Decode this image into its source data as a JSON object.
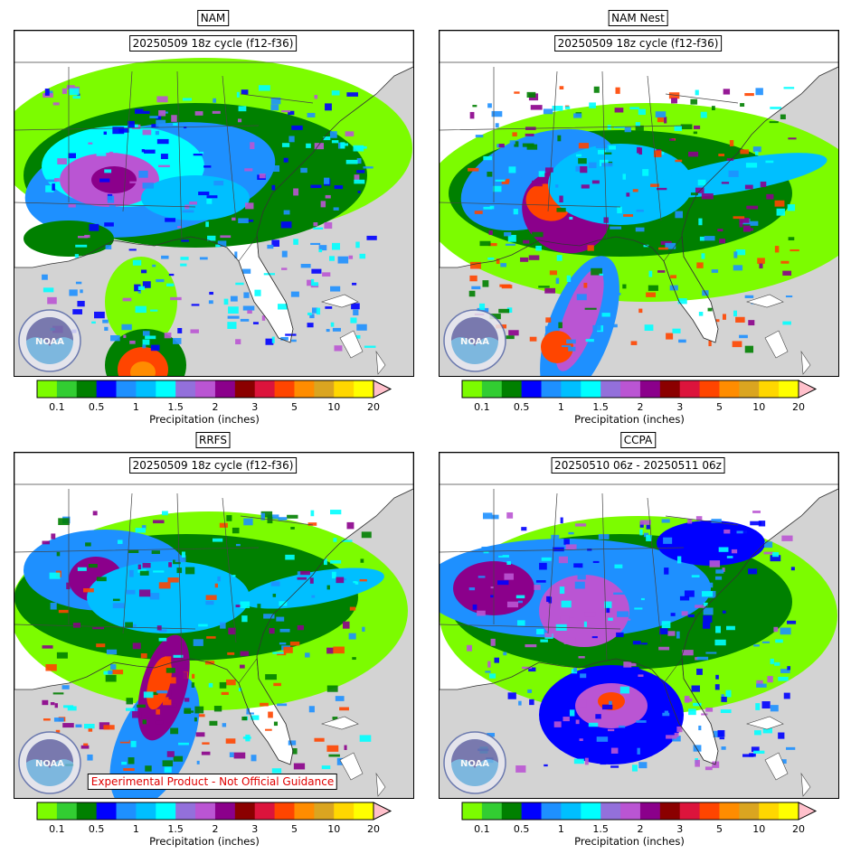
{
  "panels": [
    {
      "title": "NAM",
      "label": "20250509 18z cycle (f12-f36)",
      "disclaimer": ""
    },
    {
      "title": "NAM Nest",
      "label": "20250509 18z cycle (f12-f36)",
      "disclaimer": ""
    },
    {
      "title": "RRFS",
      "label": "20250509 18z cycle (f12-f36)",
      "disclaimer": "Experimental Product - Not Official Guidance"
    },
    {
      "title": "CCPA",
      "label": "20250510 06z - 20250511 06z",
      "disclaimer": ""
    }
  ],
  "colorbar": {
    "title": "Precipitation (inches)",
    "ticks": [
      "0.1",
      "0.5",
      "1",
      "1.5",
      "2",
      "3",
      "5",
      "10",
      "20"
    ],
    "colors": [
      "#7cfc00",
      "#32cd32",
      "#008000",
      "#0000ff",
      "#1e90ff",
      "#00bfff",
      "#00ffff",
      "#9370db",
      "#ba55d3",
      "#8b008b",
      "#8b0000",
      "#dc143c",
      "#ff4500",
      "#ff8c00",
      "#daa520",
      "#ffd700",
      "#ffff00"
    ],
    "extend_color": "#ffc0cb"
  },
  "logo": {
    "icon": "noaa-logo-icon",
    "text": "NOAA"
  },
  "colors": {
    "land": "#ffffff",
    "ocean": "#d3d3d3"
  }
}
